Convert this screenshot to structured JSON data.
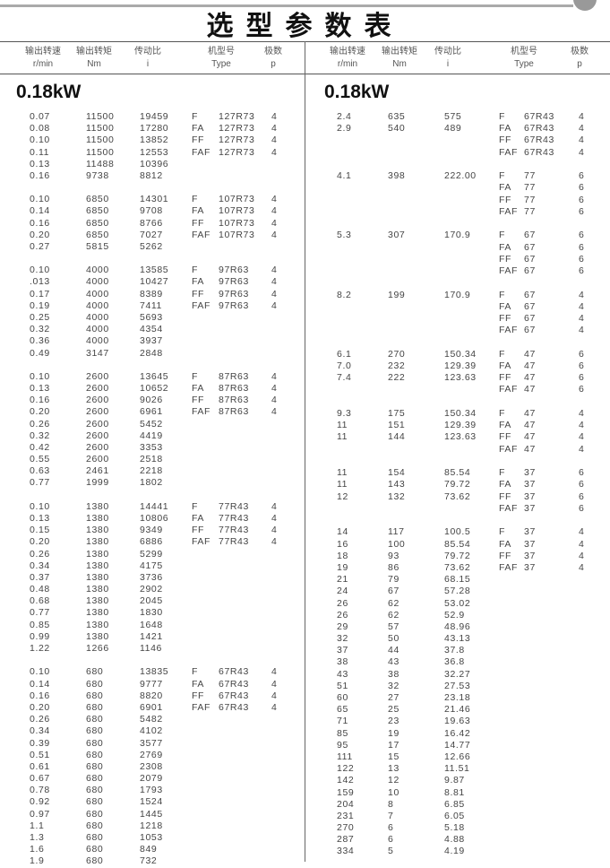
{
  "title": "选型参数表",
  "headers": [
    {
      "cn": "输出转速",
      "en": "r/min"
    },
    {
      "cn": "输出转矩",
      "en": "Nm"
    },
    {
      "cn": "传动比",
      "en": "i"
    },
    {
      "cn": "机型号",
      "en": "Type"
    },
    {
      "cn": "极数",
      "en": "p"
    }
  ],
  "left": {
    "power": "0.18kW",
    "groups": [
      {
        "rows": [
          [
            "0.07",
            "11500",
            "19459"
          ],
          [
            "0.08",
            "11500",
            "17280"
          ],
          [
            "0.10",
            "11500",
            "13852"
          ],
          [
            "0.11",
            "11500",
            "12553"
          ],
          [
            "0.13",
            "11488",
            "10396"
          ],
          [
            "0.16",
            "9738",
            "8812"
          ]
        ],
        "types": [
          [
            "F",
            "127R73",
            "4"
          ],
          [
            "FA",
            "127R73",
            "4"
          ],
          [
            "FF",
            "127R73",
            "4"
          ],
          [
            "FAF",
            "127R73",
            "4"
          ]
        ]
      },
      {
        "rows": [
          [
            "0.10",
            "6850",
            "14301"
          ],
          [
            "0.14",
            "6850",
            "9708"
          ],
          [
            "0.16",
            "6850",
            "8766"
          ],
          [
            "0.20",
            "6850",
            "7027"
          ],
          [
            "0.27",
            "5815",
            "5262"
          ]
        ],
        "types": [
          [
            "F",
            "107R73",
            "4"
          ],
          [
            "FA",
            "107R73",
            "4"
          ],
          [
            "FF",
            "107R73",
            "4"
          ],
          [
            "FAF",
            "107R73",
            "4"
          ]
        ]
      },
      {
        "rows": [
          [
            "0.10",
            "4000",
            "13585"
          ],
          [
            ".013",
            "4000",
            "10427"
          ],
          [
            "0.17",
            "4000",
            "8389"
          ],
          [
            "0.19",
            "4000",
            "7411"
          ],
          [
            "0.25",
            "4000",
            "5693"
          ],
          [
            "0.32",
            "4000",
            "4354"
          ],
          [
            "0.36",
            "4000",
            "3937"
          ],
          [
            "0.49",
            "3147",
            "2848"
          ]
        ],
        "types": [
          [
            "F",
            "97R63",
            "4"
          ],
          [
            "FA",
            "97R63",
            "4"
          ],
          [
            "FF",
            "97R63",
            "4"
          ],
          [
            "FAF",
            "97R63",
            "4"
          ]
        ]
      },
      {
        "rows": [
          [
            "0.10",
            "2600",
            "13645"
          ],
          [
            "0.13",
            "2600",
            "10652"
          ],
          [
            "0.16",
            "2600",
            "9026"
          ],
          [
            "0.20",
            "2600",
            "6961"
          ],
          [
            "0.26",
            "2600",
            "5452"
          ],
          [
            "0.32",
            "2600",
            "4419"
          ],
          [
            "0.42",
            "2600",
            "3353"
          ],
          [
            "0.55",
            "2600",
            "2518"
          ],
          [
            "0.63",
            "2461",
            "2218"
          ],
          [
            "0.77",
            "1999",
            "1802"
          ]
        ],
        "types": [
          [
            "F",
            "87R63",
            "4"
          ],
          [
            "FA",
            "87R63",
            "4"
          ],
          [
            "FF",
            "87R63",
            "4"
          ],
          [
            "FAF",
            "87R63",
            "4"
          ]
        ]
      },
      {
        "rows": [
          [
            "0.10",
            "1380",
            "14441"
          ],
          [
            "0.13",
            "1380",
            "10806"
          ],
          [
            "0.15",
            "1380",
            "9349"
          ],
          [
            "0.20",
            "1380",
            "6886"
          ],
          [
            "0.26",
            "1380",
            "5299"
          ],
          [
            "0.34",
            "1380",
            "4175"
          ],
          [
            "0.37",
            "1380",
            "3736"
          ],
          [
            "0.48",
            "1380",
            "2902"
          ],
          [
            "0.68",
            "1380",
            "2045"
          ],
          [
            "0.77",
            "1380",
            "1830"
          ],
          [
            "0.85",
            "1380",
            "1648"
          ],
          [
            "0.99",
            "1380",
            "1421"
          ],
          [
            "1.22",
            "1266",
            "1146"
          ]
        ],
        "types": [
          [
            "F",
            "77R43",
            "4"
          ],
          [
            "FA",
            "77R43",
            "4"
          ],
          [
            "FF",
            "77R43",
            "4"
          ],
          [
            "FAF",
            "77R43",
            "4"
          ]
        ]
      },
      {
        "rows": [
          [
            "0.10",
            "680",
            "13835"
          ],
          [
            "0.14",
            "680",
            "9777"
          ],
          [
            "0.16",
            "680",
            "8820"
          ],
          [
            "0.20",
            "680",
            "6901"
          ],
          [
            "0.26",
            "680",
            "5482"
          ],
          [
            "0.34",
            "680",
            "4102"
          ],
          [
            "0.39",
            "680",
            "3577"
          ],
          [
            "0.51",
            "680",
            "2769"
          ],
          [
            "0.61",
            "680",
            "2308"
          ],
          [
            "0.67",
            "680",
            "2079"
          ],
          [
            "0.78",
            "680",
            "1793"
          ],
          [
            "0.92",
            "680",
            "1524"
          ],
          [
            "0.97",
            "680",
            "1445"
          ],
          [
            "1.1",
            "680",
            "1218"
          ],
          [
            "1.3",
            "680",
            "1053"
          ],
          [
            "1.6",
            "680",
            "849"
          ],
          [
            "1.9",
            "680",
            "732"
          ]
        ],
        "types": [
          [
            "F",
            "67R43",
            "4"
          ],
          [
            "FA",
            "67R43",
            "4"
          ],
          [
            "FF",
            "67R43",
            "4"
          ],
          [
            "FAF",
            "67R43",
            "4"
          ]
        ]
      }
    ]
  },
  "right": {
    "power": "0.18kW",
    "groups": [
      {
        "rows": [
          [
            "2.4",
            "635",
            "575"
          ],
          [
            "2.9",
            "540",
            "489"
          ]
        ],
        "types": [
          [
            "F",
            "67R43",
            "4"
          ],
          [
            "FA",
            "67R43",
            "4"
          ],
          [
            "FF",
            "67R43",
            "4"
          ],
          [
            "FAF",
            "67R43",
            "4"
          ]
        ]
      },
      {
        "rows": [
          [
            "4.1",
            "398",
            "222.00"
          ]
        ],
        "types": [
          [
            "F",
            "77",
            "6"
          ],
          [
            "FA",
            "77",
            "6"
          ],
          [
            "FF",
            "77",
            "6"
          ],
          [
            "FAF",
            "77",
            "6"
          ]
        ]
      },
      {
        "rows": [
          [
            "5.3",
            "307",
            "170.9"
          ]
        ],
        "types": [
          [
            "F",
            "67",
            "6"
          ],
          [
            "FA",
            "67",
            "6"
          ],
          [
            "FF",
            "67",
            "6"
          ],
          [
            "FAF",
            "67",
            "6"
          ]
        ]
      },
      {
        "rows": [
          [
            "8.2",
            "199",
            "170.9"
          ]
        ],
        "types": [
          [
            "F",
            "67",
            "4"
          ],
          [
            "FA",
            "67",
            "4"
          ],
          [
            "FF",
            "67",
            "4"
          ],
          [
            "FAF",
            "67",
            "4"
          ]
        ]
      },
      {
        "rows": [
          [
            "6.1",
            "270",
            "150.34"
          ],
          [
            "7.0",
            "232",
            "129.39"
          ],
          [
            "7.4",
            "222",
            "123.63"
          ]
        ],
        "types": [
          [
            "F",
            "47",
            "6"
          ],
          [
            "FA",
            "47",
            "6"
          ],
          [
            "FF",
            "47",
            "6"
          ],
          [
            "FAF",
            "47",
            "6"
          ]
        ]
      },
      {
        "rows": [
          [
            "9.3",
            "175",
            "150.34"
          ],
          [
            "11",
            "151",
            "129.39"
          ],
          [
            "11",
            "144",
            "123.63"
          ]
        ],
        "types": [
          [
            "F",
            "47",
            "4"
          ],
          [
            "FA",
            "47",
            "4"
          ],
          [
            "FF",
            "47",
            "4"
          ],
          [
            "FAF",
            "47",
            "4"
          ]
        ]
      },
      {
        "rows": [
          [
            "11",
            "154",
            "85.54"
          ],
          [
            "11",
            "143",
            "79.72"
          ],
          [
            "12",
            "132",
            "73.62"
          ]
        ],
        "types": [
          [
            "F",
            "37",
            "6"
          ],
          [
            "FA",
            "37",
            "6"
          ],
          [
            "FF",
            "37",
            "6"
          ],
          [
            "FAF",
            "37",
            "6"
          ]
        ]
      },
      {
        "rows": [
          [
            "14",
            "117",
            "100.5"
          ],
          [
            "16",
            "100",
            "85.54"
          ],
          [
            "18",
            "93",
            "79.72"
          ],
          [
            "19",
            "86",
            "73.62"
          ],
          [
            "21",
            "79",
            "68.15"
          ],
          [
            "24",
            "67",
            "57.28"
          ],
          [
            "26",
            "62",
            "53.02"
          ],
          [
            "26",
            "62",
            "52.9"
          ],
          [
            "29",
            "57",
            "48.96"
          ],
          [
            "32",
            "50",
            "43.13"
          ],
          [
            "37",
            "44",
            "37.8"
          ],
          [
            "38",
            "43",
            "36.8"
          ],
          [
            "43",
            "38",
            "32.27"
          ],
          [
            "51",
            "32",
            "27.53"
          ],
          [
            "60",
            "27",
            "23.18"
          ],
          [
            "65",
            "25",
            "21.46"
          ],
          [
            "71",
            "23",
            "19.63"
          ],
          [
            "85",
            "19",
            "16.42"
          ],
          [
            "95",
            "17",
            "14.77"
          ],
          [
            "111",
            "15",
            "12.66"
          ],
          [
            "122",
            "13",
            "11.51"
          ],
          [
            "142",
            "12",
            "9.87"
          ],
          [
            "159",
            "10",
            "8.81"
          ],
          [
            "204",
            "8",
            "6.85"
          ],
          [
            "231",
            "7",
            "6.05"
          ],
          [
            "270",
            "6",
            "5.18"
          ],
          [
            "287",
            "6",
            "4.88"
          ],
          [
            "334",
            "5",
            "4.19"
          ]
        ],
        "types": [
          [
            "F",
            "37",
            "4"
          ],
          [
            "FA",
            "37",
            "4"
          ],
          [
            "FF",
            "37",
            "4"
          ],
          [
            "FAF",
            "37",
            "4"
          ]
        ]
      }
    ]
  }
}
